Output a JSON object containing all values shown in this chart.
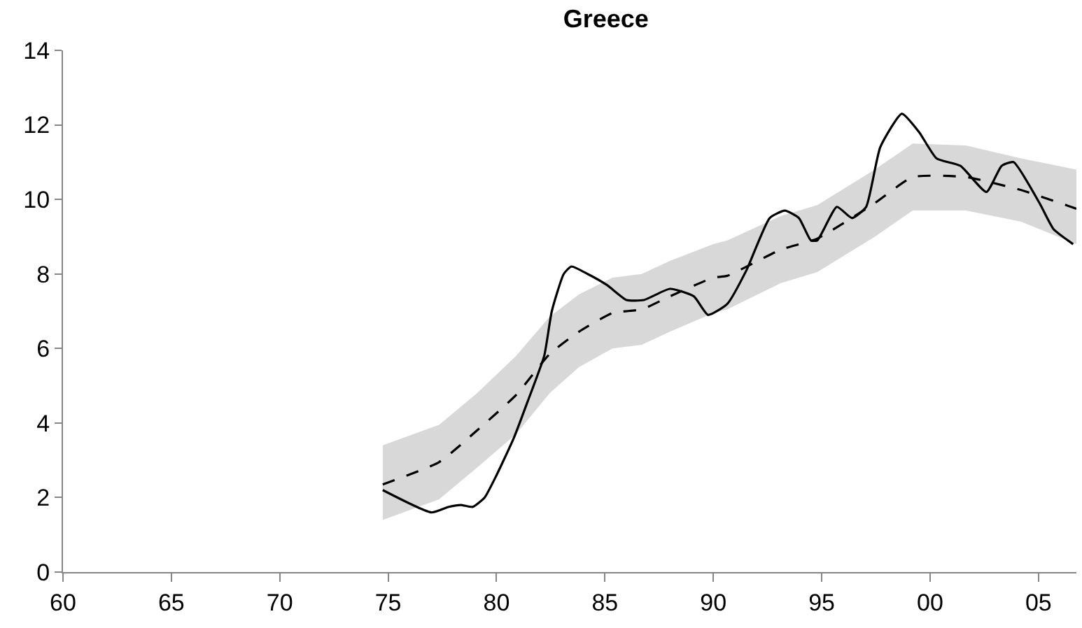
{
  "chart_data": {
    "type": "line",
    "title": "Greece",
    "xlim": [
      1960,
      2006.75
    ],
    "ylim": [
      0,
      14
    ],
    "xticks": [
      {
        "value": 1960,
        "label": "60"
      },
      {
        "value": 1965,
        "label": "65"
      },
      {
        "value": 1970,
        "label": "70"
      },
      {
        "value": 1975,
        "label": "75"
      },
      {
        "value": 1980,
        "label": "80"
      },
      {
        "value": 1985,
        "label": "85"
      },
      {
        "value": 1990,
        "label": "90"
      },
      {
        "value": 1995,
        "label": "95"
      },
      {
        "value": 2000,
        "label": "00"
      },
      {
        "value": 2005,
        "label": "05"
      }
    ],
    "yticks": [
      0,
      2,
      4,
      6,
      8,
      10,
      12,
      14
    ],
    "marker": "none",
    "series": [
      {
        "color": "#000000",
        "line_style": "solid",
        "x": [
          1974.75,
          1977.0,
          1977.8,
          1978.35,
          1978.9,
          1979.45,
          1980.0,
          1980.8,
          1981.45,
          1982.2,
          1982.55,
          1983.1,
          1983.45,
          1984.2,
          1985.1,
          1986.0,
          1986.8,
          1988.0,
          1989.1,
          1989.76,
          1990.65,
          1991.53,
          1992.6,
          1993.3,
          1993.95,
          1994.5,
          1994.8,
          1995.7,
          1996.4,
          1997.05,
          1997.7,
          1998.7,
          1999.5,
          2000.3,
          2001.4,
          2002.6,
          2003.3,
          2003.85,
          2005.05,
          2005.7,
          2006.6
        ],
        "values": [
          2.2,
          1.6,
          1.75,
          1.8,
          1.75,
          2.0,
          2.6,
          3.6,
          4.6,
          5.8,
          7.0,
          8.0,
          8.2,
          8.0,
          7.7,
          7.3,
          7.3,
          7.6,
          7.4,
          6.9,
          7.2,
          8.1,
          9.5,
          9.7,
          9.5,
          8.9,
          8.9,
          9.8,
          9.5,
          9.8,
          11.4,
          12.3,
          11.8,
          11.1,
          10.9,
          10.2,
          10.9,
          11.0,
          9.9,
          9.2,
          8.8
        ]
      },
      {
        "color": "#000000",
        "line_style": "dashed",
        "x": [
          1974.75,
          1977.35,
          1979.1,
          1980.9,
          1982.45,
          1983.8,
          1985.35,
          1986.7,
          1988.0,
          1990.0,
          1990.65,
          1993.1,
          1994.8,
          1997.45,
          1999.2,
          2001.65,
          2004.2,
          2006.75
        ],
        "values": [
          2.35,
          2.95,
          3.8,
          4.75,
          5.85,
          6.45,
          6.95,
          7.05,
          7.4,
          7.9,
          7.95,
          8.65,
          8.95,
          9.9,
          10.6,
          10.6,
          10.25,
          9.75
        ],
        "upper": [
          3.4,
          3.95,
          4.8,
          5.8,
          6.85,
          7.45,
          7.9,
          8.0,
          8.35,
          8.8,
          8.9,
          9.55,
          9.85,
          10.8,
          11.5,
          11.45,
          11.1,
          10.8
        ],
        "lower": [
          1.4,
          1.95,
          2.8,
          3.7,
          4.8,
          5.5,
          6.0,
          6.1,
          6.45,
          6.95,
          7.05,
          7.75,
          8.05,
          9.0,
          9.7,
          9.7,
          9.4,
          8.8
        ]
      }
    ]
  }
}
